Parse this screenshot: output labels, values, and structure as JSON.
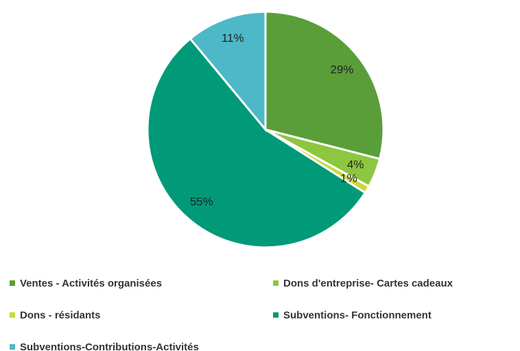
{
  "chart_data": {
    "type": "pie",
    "categories": [
      "Ventes - Activités organisées",
      "Dons d'entreprise- Cartes cadeaux",
      "Dons - résidants",
      "Subventions- Fonctionnement",
      "Subventions-Contributions-Activités"
    ],
    "values": [
      29,
      4,
      1,
      55,
      11
    ],
    "value_labels": [
      "29%",
      "4%",
      "1%",
      "55%",
      "11%"
    ],
    "colors": [
      "#5a9e3a",
      "#8dc63f",
      "#c9d93b",
      "#009a78",
      "#4db8c8"
    ],
    "legend": "bottom"
  }
}
